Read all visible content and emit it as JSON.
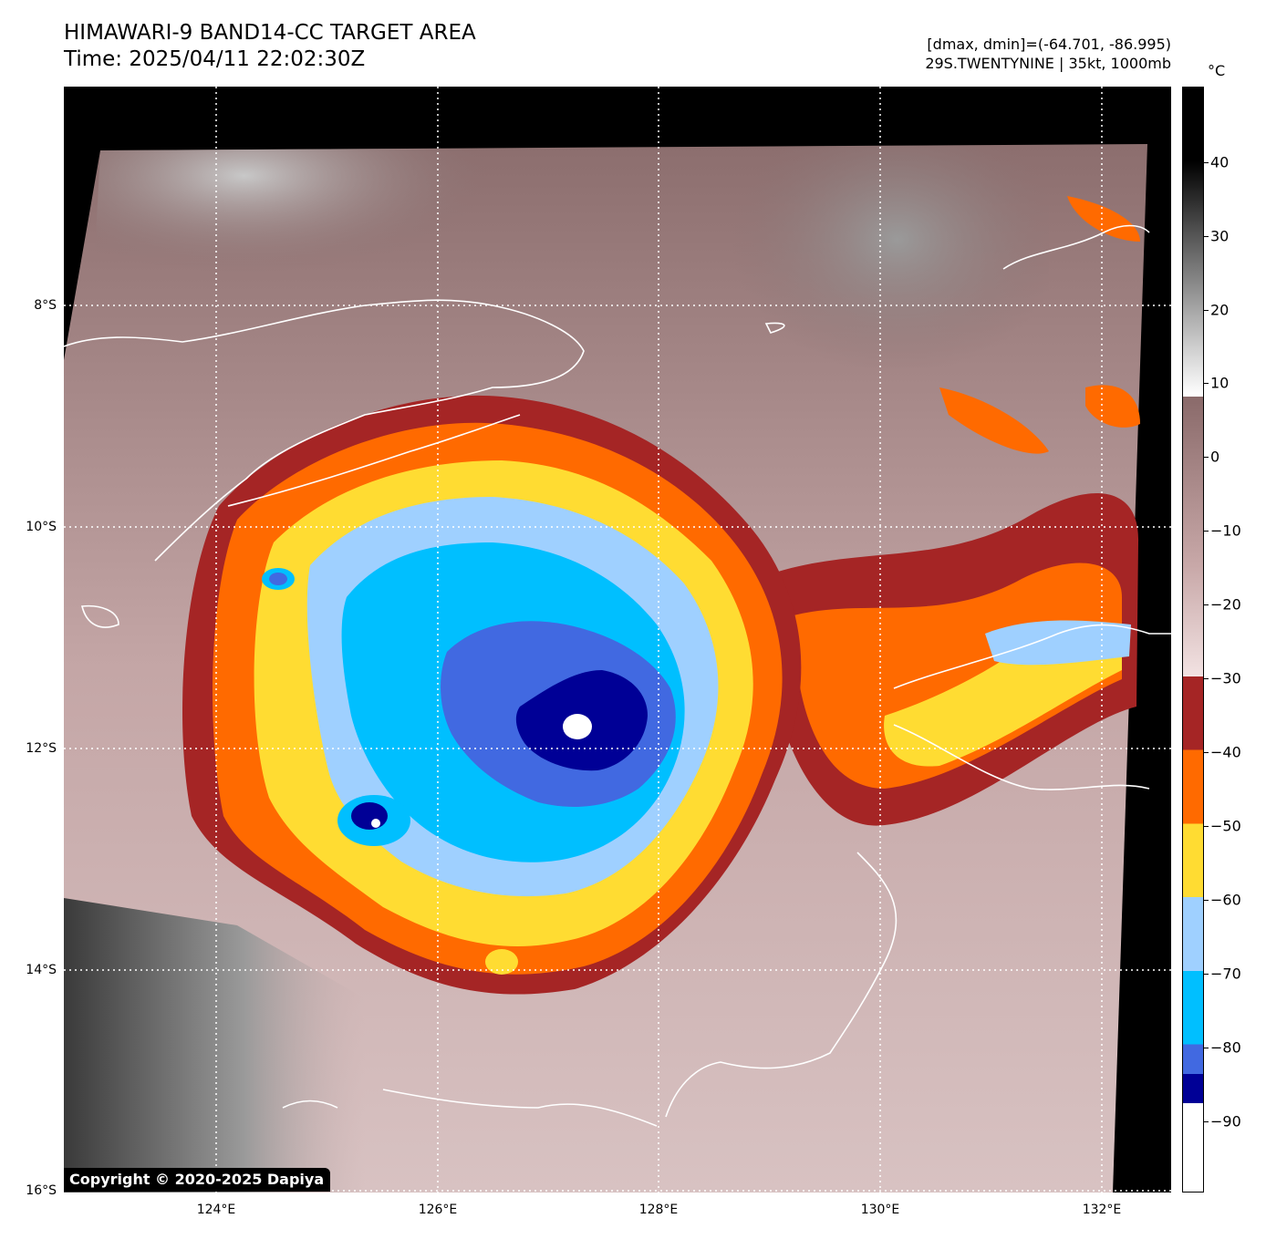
{
  "header": {
    "title_line1": "HIMAWARI-9 BAND14-CC TARGET AREA",
    "title_line2": "Time: 2025/04/11 22:02:30Z",
    "info_line1": "[dmax, dmin]=(-64.701, -86.995)",
    "info_line2": "29S.TWENTYNINE | 35kt, 1000mb"
  },
  "map": {
    "lat_labels": [
      "8°S",
      "10°S",
      "12°S",
      "14°S",
      "16°S"
    ],
    "lon_labels": [
      "124°E",
      "126°E",
      "128°E",
      "130°E",
      "132°E"
    ],
    "gridlines": "dotted white",
    "coastline_color": "#ffffff",
    "copyright": "Copyright © 2020-2025 Dapiya"
  },
  "colorbar": {
    "unit": "°C",
    "tick_labels": [
      "40",
      "30",
      "20",
      "10",
      "0",
      "−10",
      "−20",
      "−30",
      "−40",
      "−50",
      "−60",
      "−70",
      "−80",
      "−90"
    ],
    "range_c": [
      50,
      -100
    ],
    "bands": [
      {
        "from": -30,
        "to": -40,
        "color": "#a52525"
      },
      {
        "from": -40,
        "to": -50,
        "color": "#ff6a00"
      },
      {
        "from": -50,
        "to": -60,
        "color": "#ffdc32"
      },
      {
        "from": -60,
        "to": -70,
        "color": "#9fd0ff"
      },
      {
        "from": -70,
        "to": -80,
        "color": "#00bfff"
      },
      {
        "from": -80,
        "to": -84,
        "color": "#4169e1"
      },
      {
        "from": -84,
        "to": -88,
        "color": "#000096"
      },
      {
        "from": -88,
        "to": -100,
        "color": "#ffffff"
      }
    ]
  }
}
